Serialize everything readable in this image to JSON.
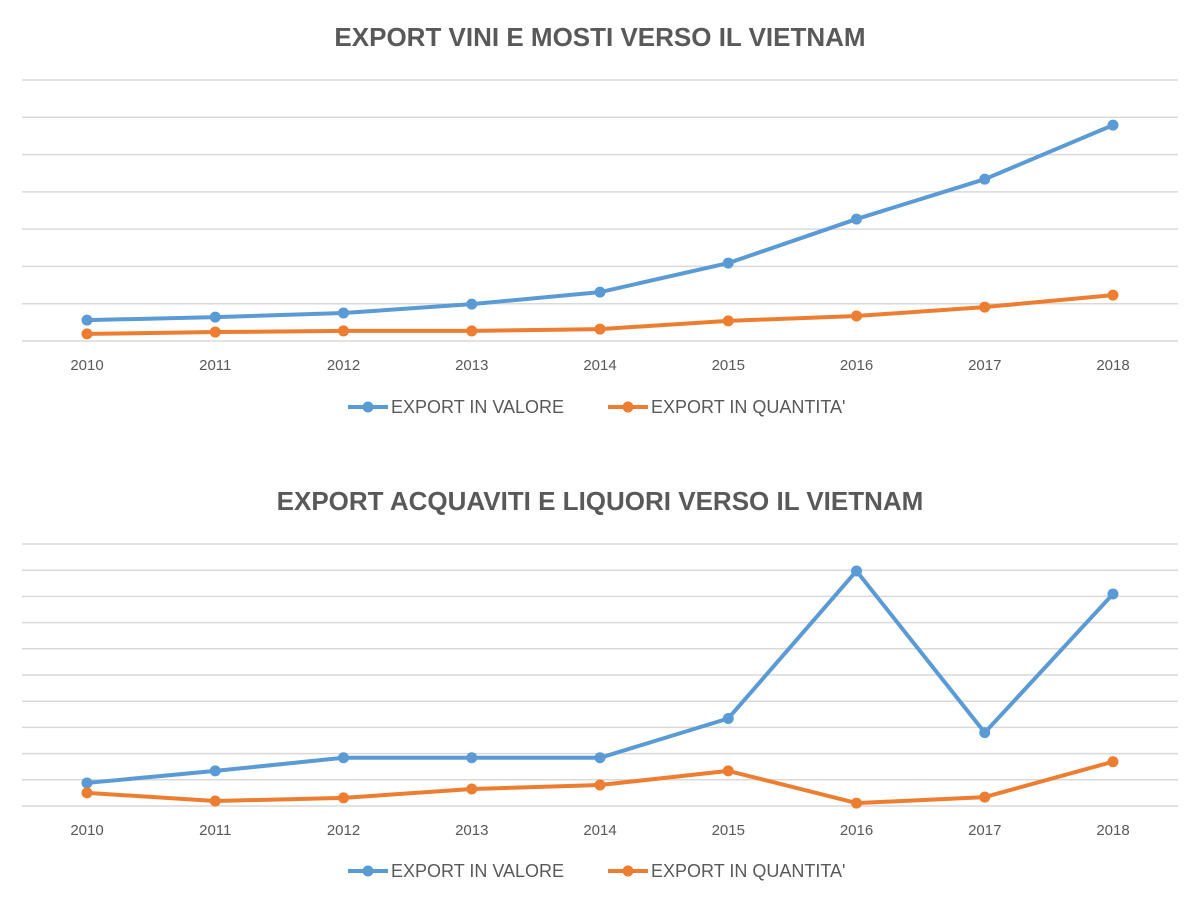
{
  "chart_data": [
    {
      "type": "line",
      "title": "EXPORT VINI E MOSTI VERSO IL VIETNAM",
      "categories": [
        "2010",
        "2011",
        "2012",
        "2013",
        "2014",
        "2015",
        "2016",
        "2017",
        "2018"
      ],
      "y_axis_labels_shown": false,
      "ylim": [
        0,
        7
      ],
      "grid": true,
      "legend_position": "bottom",
      "series": [
        {
          "name": "EXPORT IN VALORE",
          "color": "#5B9BD5",
          "values": [
            0.56,
            0.64,
            0.75,
            0.99,
            1.31,
            2.09,
            3.27,
            4.34,
            5.79
          ]
        },
        {
          "name": "EXPORT IN QUANTITA'",
          "color": "#ED7D31",
          "values": [
            0.19,
            0.24,
            0.27,
            0.27,
            0.32,
            0.54,
            0.67,
            0.91,
            1.23
          ]
        }
      ]
    },
    {
      "type": "line",
      "title": "EXPORT ACQUAVITI E LIQUORI VERSO IL VIETNAM",
      "categories": [
        "2010",
        "2011",
        "2012",
        "2013",
        "2014",
        "2015",
        "2016",
        "2017",
        "2018"
      ],
      "y_axis_labels_shown": false,
      "ylim": [
        0,
        10
      ],
      "grid": true,
      "legend_position": "bottom",
      "series": [
        {
          "name": "EXPORT IN VALORE",
          "color": "#5B9BD5",
          "values": [
            0.88,
            1.34,
            1.84,
            1.84,
            1.84,
            3.34,
            8.97,
            2.8,
            8.09
          ]
        },
        {
          "name": "EXPORT IN QUANTITA'",
          "color": "#ED7D31",
          "values": [
            0.5,
            0.19,
            0.31,
            0.65,
            0.8,
            1.34,
            0.11,
            0.34,
            1.69
          ]
        }
      ]
    }
  ]
}
